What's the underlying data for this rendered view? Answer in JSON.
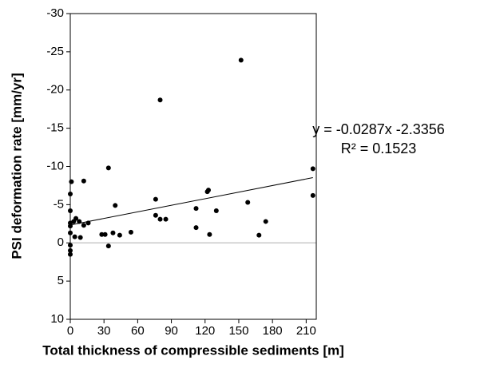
{
  "chart_data": {
    "type": "scatter",
    "xlabel": "Total thickness of compressible sediments [m]",
    "ylabel": "PSI deformation rate [mm/yr]",
    "annotations": [
      "y = -0.0287x -2.3356",
      "R² = 0.1523"
    ],
    "x": [
      0,
      1,
      0,
      0,
      0,
      0,
      0,
      0,
      0,
      3,
      5,
      4,
      8,
      9,
      12,
      12,
      16,
      28,
      31,
      34,
      34,
      38,
      40,
      44,
      54,
      76,
      76,
      80,
      80,
      85,
      112,
      112,
      122,
      123,
      124,
      130,
      152,
      158,
      168,
      174,
      216,
      216
    ],
    "values": [
      -6.4,
      -8,
      -4.2,
      -2.6,
      -2.2,
      -1.3,
      0.3,
      1,
      1.5,
      -2.8,
      -3.2,
      -0.8,
      -2.8,
      -0.7,
      -8.1,
      -2.3,
      -2.6,
      -1.1,
      -1.1,
      -9.8,
      0.4,
      -1.3,
      -4.9,
      -1,
      -1.4,
      -5.7,
      -3.6,
      -18.7,
      -3.1,
      -3.1,
      -4.5,
      -2,
      -6.7,
      -6.9,
      -1.1,
      -4.2,
      -23.9,
      -5.3,
      -1,
      -2.8,
      -9.7,
      -6.2
    ],
    "color": "#000000",
    "trendline": {
      "slope": -0.0287,
      "intercept": -2.3356,
      "x_range": [
        0,
        216
      ],
      "color": "#000000"
    },
    "hline": {
      "value": 0,
      "color": "#c8c8c8"
    },
    "xlim": [
      0,
      219
    ],
    "xticks": [
      0,
      30,
      60,
      90,
      120,
      150,
      180,
      210
    ],
    "ylim": [
      -30,
      10
    ],
    "y_reversed": true,
    "yticks": [
      -30,
      -25,
      -20,
      -15,
      -10,
      -5,
      0,
      5,
      10
    ],
    "grid": false
  }
}
